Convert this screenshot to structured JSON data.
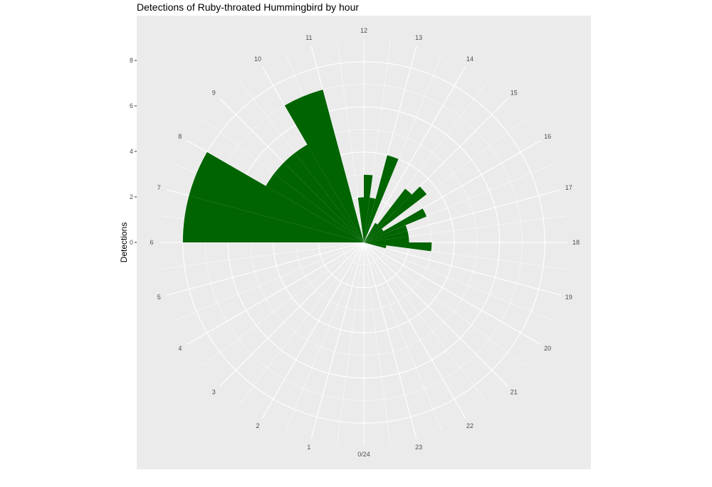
{
  "chart_data": {
    "type": "bar",
    "coordinate_system": "polar",
    "title": "Detections of Ruby-throated Hummingbird by hour",
    "xlabel": "",
    "ylabel": "Detections",
    "categories": [
      "0/24",
      "1",
      "2",
      "3",
      "4",
      "5",
      "6",
      "7",
      "8",
      "9",
      "10",
      "11",
      "12",
      "13",
      "14",
      "15",
      "16",
      "17",
      "18",
      "19",
      "20",
      "21",
      "22",
      "23"
    ],
    "series": [
      {
        "color": "#006400",
        "values": [
          0,
          0,
          0,
          0,
          0,
          0,
          0,
          0,
          0,
          0,
          0,
          0,
          0,
          0,
          0,
          0,
          0,
          0,
          0,
          0,
          0,
          0,
          0,
          0
        ],
        "bars": [
          {
            "start": 6.0,
            "end": 7.0,
            "value": 8.0
          },
          {
            "start": 7.0,
            "end": 8.0,
            "value": 8.0
          },
          {
            "start": 8.0,
            "end": 8.5,
            "value": 5.0
          },
          {
            "start": 8.5,
            "end": 9.0,
            "value": 5.0
          },
          {
            "start": 9.0,
            "end": 9.5,
            "value": 5.0
          },
          {
            "start": 9.5,
            "end": 10.0,
            "value": 5.0
          },
          {
            "start": 10.0,
            "end": 11.0,
            "value": 7.0
          },
          {
            "start": 11.5,
            "end": 12.0,
            "value": 2.0
          },
          {
            "start": 12.0,
            "end": 12.5,
            "value": 3.0
          },
          {
            "start": 12.5,
            "end": 13.0,
            "value": 2.0
          },
          {
            "start": 13.0,
            "end": 13.5,
            "value": 4.0
          },
          {
            "start": 14.0,
            "end": 14.5,
            "value": 1.0
          },
          {
            "start": 14.5,
            "end": 15.0,
            "value": 3.0
          },
          {
            "start": 15.0,
            "end": 15.5,
            "value": 3.5
          },
          {
            "start": 15.5,
            "end": 16.0,
            "value": 1.0
          },
          {
            "start": 16.0,
            "end": 16.5,
            "value": 3.0
          },
          {
            "start": 16.5,
            "end": 17.0,
            "value": 2.0
          },
          {
            "start": 17.0,
            "end": 17.5,
            "value": 2.0
          },
          {
            "start": 17.5,
            "end": 18.0,
            "value": 2.0
          },
          {
            "start": 18.0,
            "end": 18.5,
            "value": 3.0
          },
          {
            "start": 18.5,
            "end": 19.0,
            "value": 1.0
          }
        ]
      }
    ],
    "ylim": [
      0,
      9
    ],
    "y_ticks": [
      0,
      2,
      4,
      6,
      8
    ],
    "grid": true,
    "legend": "none",
    "panel_background": "#ebebeb",
    "grid_color": "#ffffff",
    "bar_color": "#006400"
  }
}
